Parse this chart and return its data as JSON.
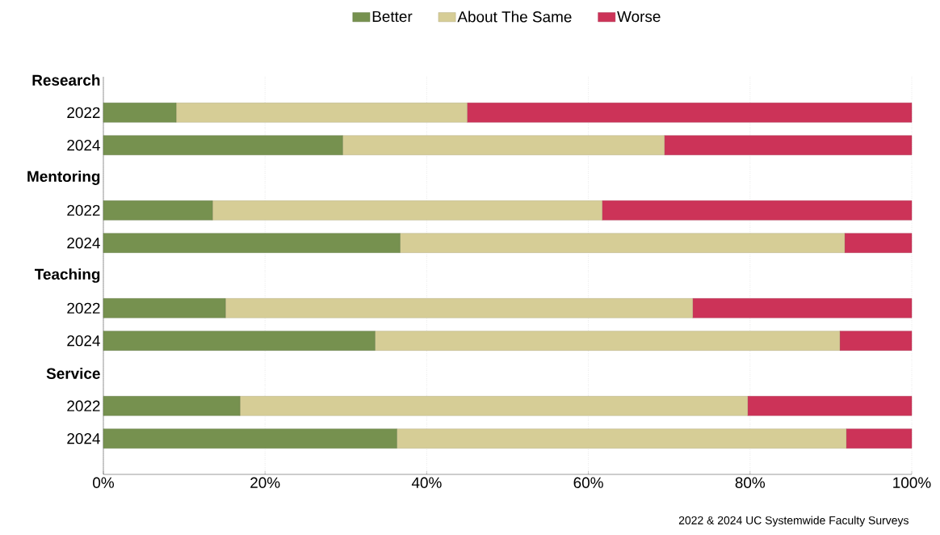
{
  "chart_data": {
    "type": "bar",
    "orientation": "horizontal",
    "stacked": true,
    "categories": [
      "Research",
      "2022",
      "2024",
      "Mentoring",
      "2022",
      "2024",
      "Teaching",
      "2022",
      "2024",
      "Service",
      "2022",
      "2024"
    ],
    "series": [
      {
        "name": "Better",
        "color": "#76914f",
        "values": [
          null,
          9.0,
          29.6,
          null,
          13.5,
          36.7,
          null,
          15.1,
          33.6,
          null,
          16.9,
          36.3
        ]
      },
      {
        "name": "About The Same",
        "color": "#d6cd96",
        "values": [
          null,
          36.0,
          39.8,
          null,
          48.2,
          55.0,
          null,
          57.8,
          57.5,
          null,
          62.8,
          55.6
        ]
      },
      {
        "name": "Worse",
        "color": "#cc3358",
        "values": [
          null,
          55.0,
          30.6,
          null,
          38.3,
          8.3,
          null,
          27.1,
          8.9,
          null,
          20.3,
          8.1
        ]
      }
    ],
    "xlim": [
      0,
      100
    ],
    "xticks": [
      {
        "value": 0,
        "label": "0%"
      },
      {
        "value": 20,
        "label": "20%"
      },
      {
        "value": 40,
        "label": "40%"
      },
      {
        "value": 60,
        "label": "60%"
      },
      {
        "value": 80,
        "label": "80%"
      },
      {
        "value": 100,
        "label": "100%"
      }
    ],
    "grid": "x",
    "legend": "top",
    "annotations": [
      "2022 & 2024 UC Systemwide Faculty Surveys"
    ]
  }
}
